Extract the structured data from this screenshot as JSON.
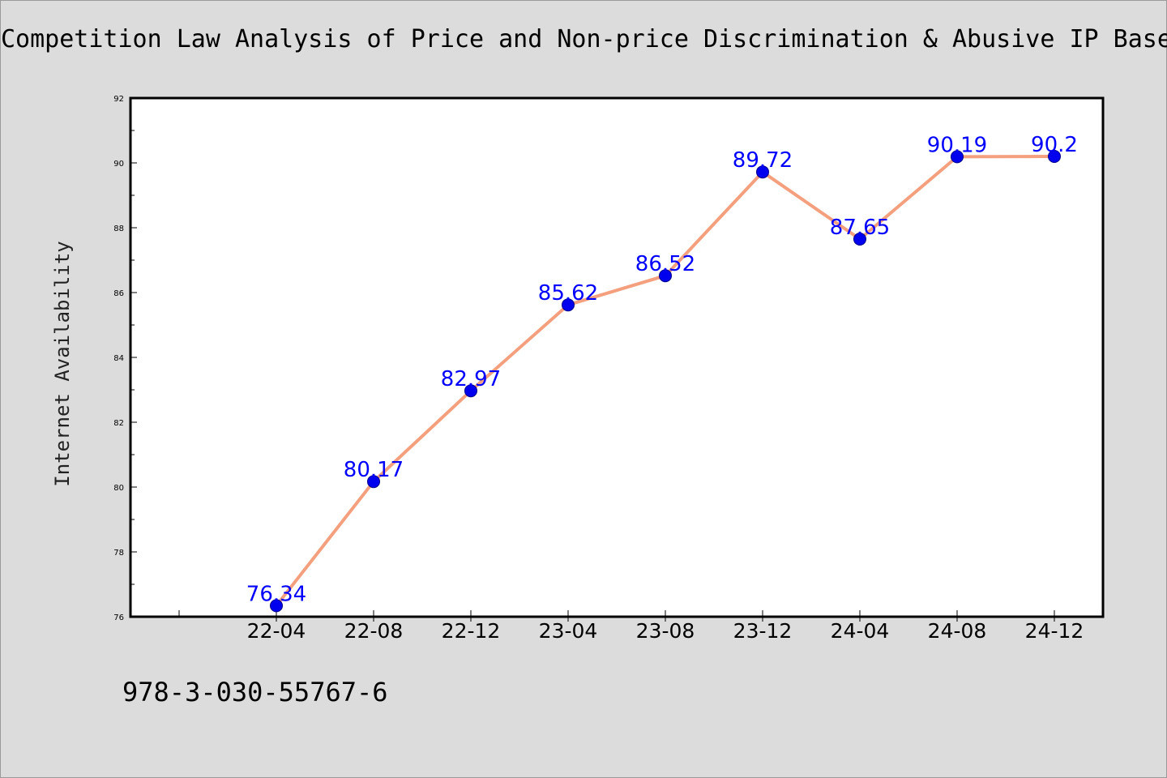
{
  "chart_data": {
    "type": "line",
    "title": "Competition Law Analysis of Price and Non-price Discrimination & Abusive IP Base",
    "xlabel": "",
    "ylabel": "Internet Availability",
    "categories": [
      "22-04",
      "22-08",
      "22-12",
      "23-04",
      "23-08",
      "23-12",
      "24-04",
      "24-08",
      "24-12"
    ],
    "series": [
      {
        "values": [
          76.34,
          80.17,
          82.97,
          85.62,
          86.52,
          89.72,
          87.65,
          90.19,
          90.2
        ],
        "data_labels": [
          "76.34",
          "80.17",
          "82.97",
          "85.62",
          "86.52",
          "89.72",
          "87.65",
          "90.19",
          "90.2"
        ]
      }
    ],
    "ylim": [
      76,
      92
    ],
    "yticks": [
      "76",
      "78",
      "80",
      "82",
      "84",
      "86",
      "88",
      "90",
      "92"
    ],
    "grid": false,
    "legend": "none",
    "colors": {
      "line": "#f4a07e",
      "marker": "#0000ee",
      "marker_edge": "#00008b",
      "data_label": "#0000ff",
      "background": "#dcdcdc",
      "plot_background": "#ffffff"
    }
  },
  "footer_text": "978-3-030-55767-6"
}
